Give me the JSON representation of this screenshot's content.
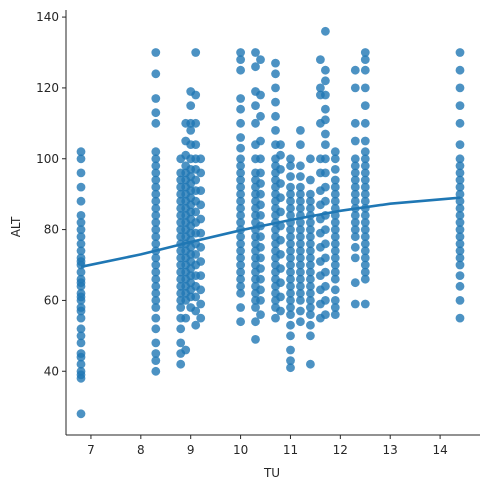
{
  "chart_data": {
    "type": "scatter",
    "title": "",
    "xlabel": "TU",
    "ylabel": "ALT",
    "xlim": [
      6.5,
      14.8
    ],
    "ylim": [
      22,
      142
    ],
    "xticks": [
      7,
      8,
      9,
      10,
      11,
      12,
      13,
      14
    ],
    "yticks": [
      40,
      60,
      80,
      100,
      120,
      140
    ],
    "grid": false,
    "colors": {
      "points": "#1f77b4",
      "fit_line": "#1f77b4"
    },
    "fit_line": {
      "type": "order-2 polynomial",
      "points": [
        [
          6.8,
          69.5
        ],
        [
          8.0,
          73.0
        ],
        [
          9.0,
          76.5
        ],
        [
          10.0,
          79.8
        ],
        [
          11.0,
          82.7
        ],
        [
          12.0,
          85.3
        ],
        [
          13.0,
          87.3
        ],
        [
          14.4,
          89.0
        ]
      ]
    },
    "columns": [
      {
        "x": 6.8,
        "values": [
          28,
          38,
          39,
          40,
          42,
          44,
          45,
          48,
          50,
          52,
          55,
          57,
          58,
          60,
          61,
          62,
          64,
          65,
          66,
          68,
          70,
          71,
          72,
          74,
          76,
          78,
          80,
          82,
          84,
          88,
          92,
          96,
          100,
          102
        ]
      },
      {
        "x": 8.3,
        "values": [
          40,
          43,
          45,
          48,
          52,
          55,
          58,
          60,
          62,
          64,
          66,
          68,
          70,
          72,
          74,
          76,
          78,
          80,
          82,
          84,
          86,
          88,
          90,
          92,
          94,
          96,
          98,
          100,
          102,
          110,
          113,
          117,
          124,
          130
        ]
      },
      {
        "x": 8.8,
        "values": [
          42,
          45,
          48,
          52,
          55,
          58,
          60,
          62,
          64,
          66,
          68,
          70,
          72,
          74,
          76,
          78,
          80,
          82,
          84,
          86,
          88,
          90,
          92,
          94,
          96,
          100
        ]
      },
      {
        "x": 8.9,
        "values": [
          46,
          55,
          60,
          62,
          64,
          66,
          68,
          70,
          72,
          74,
          76,
          78,
          80,
          82,
          84,
          86,
          88,
          90,
          92,
          94,
          96,
          98,
          101,
          105,
          110
        ]
      },
      {
        "x": 9.0,
        "values": [
          58,
          61,
          63,
          65,
          67,
          69,
          71,
          73,
          75,
          77,
          79,
          81,
          83,
          85,
          87,
          89,
          91,
          93,
          95,
          97,
          100,
          104,
          108,
          110,
          115,
          119
        ]
      },
      {
        "x": 9.1,
        "values": [
          53,
          57,
          61,
          64,
          67,
          70,
          73,
          76,
          79,
          82,
          85,
          88,
          91,
          94,
          97,
          100,
          104,
          110,
          118,
          130
        ]
      },
      {
        "x": 9.2,
        "values": [
          55,
          59,
          63,
          67,
          71,
          75,
          79,
          83,
          87,
          91,
          96,
          100
        ]
      },
      {
        "x": 10.0,
        "values": [
          54,
          58,
          62,
          64,
          66,
          68,
          70,
          72,
          74,
          76,
          78,
          80,
          82,
          84,
          86,
          88,
          90,
          92,
          94,
          96,
          98,
          100,
          103,
          106,
          110,
          114,
          117,
          125,
          128,
          130
        ]
      },
      {
        "x": 10.3,
        "values": [
          49,
          54,
          58,
          60,
          62,
          64,
          66,
          68,
          70,
          72,
          74,
          76,
          78,
          80,
          82,
          84,
          86,
          88,
          90,
          92,
          94,
          96,
          100,
          104,
          110,
          115,
          119,
          126,
          130
        ]
      },
      {
        "x": 10.4,
        "values": [
          56,
          60,
          63,
          66,
          69,
          72,
          75,
          78,
          81,
          84,
          87,
          90,
          93,
          96,
          100,
          105,
          112,
          118,
          128
        ]
      },
      {
        "x": 10.7,
        "values": [
          55,
          58,
          60,
          62,
          64,
          66,
          68,
          70,
          72,
          74,
          76,
          78,
          80,
          82,
          84,
          86,
          88,
          90,
          92,
          94,
          96,
          98,
          100,
          104,
          108,
          112,
          116,
          120,
          124,
          127
        ]
      },
      {
        "x": 10.8,
        "values": [
          57,
          61,
          65,
          69,
          73,
          77,
          81,
          85,
          89,
          93,
          97,
          101,
          104
        ]
      },
      {
        "x": 11.0,
        "values": [
          41,
          43,
          46,
          50,
          53,
          56,
          58,
          60,
          62,
          64,
          66,
          68,
          70,
          72,
          74,
          76,
          78,
          80,
          82,
          84,
          86,
          88,
          90,
          92,
          95,
          98,
          100
        ]
      },
      {
        "x": 11.2,
        "values": [
          54,
          57,
          60,
          62,
          64,
          66,
          68,
          70,
          72,
          74,
          76,
          78,
          80,
          82,
          84,
          86,
          88,
          90,
          92,
          95,
          98,
          104,
          108
        ]
      },
      {
        "x": 11.4,
        "values": [
          42,
          50,
          53,
          56,
          58,
          60,
          62,
          64,
          66,
          68,
          70,
          72,
          74,
          76,
          78,
          80,
          82,
          84,
          86,
          88,
          90,
          94,
          100
        ]
      },
      {
        "x": 11.6,
        "values": [
          55,
          59,
          63,
          67,
          71,
          75,
          79,
          83,
          87,
          91,
          96,
          100,
          110,
          118,
          120,
          128
        ]
      },
      {
        "x": 11.7,
        "values": [
          56,
          60,
          64,
          68,
          72,
          76,
          80,
          84,
          88,
          92,
          96,
          100,
          104,
          107,
          111,
          114,
          118,
          122,
          125,
          136
        ]
      },
      {
        "x": 11.9,
        "values": [
          56,
          58,
          60,
          63,
          66,
          68,
          70,
          72,
          74,
          76,
          78,
          80,
          82,
          84,
          86,
          88,
          90,
          92,
          94,
          97,
          100,
          102
        ]
      },
      {
        "x": 12.3,
        "values": [
          59,
          65,
          72,
          75,
          78,
          80,
          82,
          84,
          86,
          88,
          90,
          92,
          94,
          96,
          98,
          100,
          105,
          110,
          120,
          125
        ]
      },
      {
        "x": 12.5,
        "values": [
          59,
          66,
          68,
          70,
          72,
          74,
          76,
          78,
          80,
          82,
          84,
          86,
          88,
          90,
          92,
          94,
          96,
          98,
          100,
          102,
          105,
          110,
          115,
          120,
          125,
          128,
          130
        ]
      },
      {
        "x": 14.4,
        "values": [
          55,
          60,
          64,
          67,
          70,
          72,
          74,
          76,
          78,
          80,
          82,
          84,
          86,
          88,
          90,
          92,
          94,
          96,
          98,
          100,
          104,
          110,
          115,
          120,
          125,
          130
        ]
      }
    ]
  }
}
